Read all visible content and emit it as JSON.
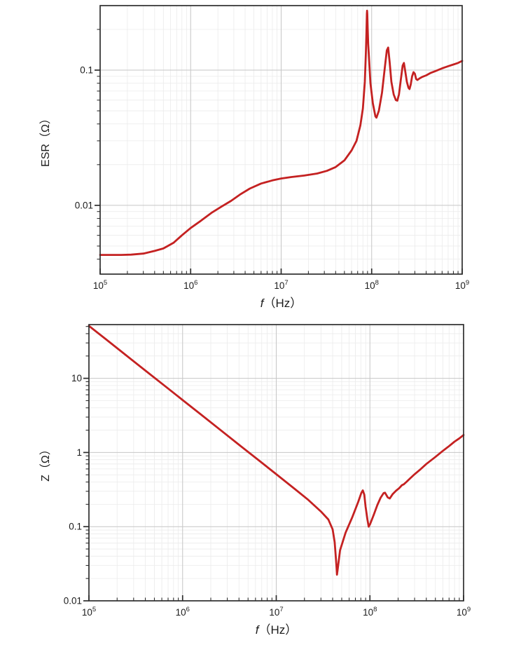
{
  "colors": {
    "curve": "#c42121",
    "frame": "#2e2e2e",
    "grid_major": "#c6c6c6",
    "grid_minor": "#ebebeb",
    "tick": "#2e2e2e",
    "text": "#1c1c1c"
  },
  "chart_data": [
    {
      "type": "line",
      "title": "",
      "xlabel": {
        "italic": "f",
        "rest": "（Hz）"
      },
      "ylabel": "ESR（Ω）",
      "xscale": "log",
      "yscale": "log",
      "xlim": [
        100000,
        1000000000
      ],
      "ylim": [
        0.0031,
        0.3
      ],
      "grid": {
        "major": true,
        "minor": true
      },
      "legend": null,
      "xticks": [
        {
          "v": 100000,
          "base": "10",
          "exp": "5"
        },
        {
          "v": 1000000,
          "base": "10",
          "exp": "6"
        },
        {
          "v": 10000000,
          "base": "10",
          "exp": "7"
        },
        {
          "v": 100000000,
          "base": "10",
          "exp": "8"
        },
        {
          "v": 1000000000,
          "base": "10",
          "exp": "9"
        }
      ],
      "yticks": [
        {
          "v": 0.01,
          "label": "0.01"
        },
        {
          "v": 0.1,
          "label": "0.1"
        }
      ],
      "series": [
        {
          "name": "ESR",
          "points": [
            [
              100000,
              0.0043
            ],
            [
              130000,
              0.0043
            ],
            [
              170000,
              0.0043
            ],
            [
              220000,
              0.00432
            ],
            [
              300000,
              0.0044
            ],
            [
              400000,
              0.0046
            ],
            [
              500000,
              0.0048
            ],
            [
              650000,
              0.0053
            ],
            [
              800000,
              0.006
            ],
            [
              1000000,
              0.0068
            ],
            [
              1300000,
              0.0077
            ],
            [
              1700000,
              0.0088
            ],
            [
              2200000,
              0.0098
            ],
            [
              2800000,
              0.0108
            ],
            [
              3500000,
              0.012
            ],
            [
              4500000,
              0.0133
            ],
            [
              6000000,
              0.0145
            ],
            [
              8000000,
              0.0153
            ],
            [
              10000000,
              0.0158
            ],
            [
              13000000,
              0.0162
            ],
            [
              18000000,
              0.0166
            ],
            [
              25000000,
              0.0172
            ],
            [
              32000000,
              0.018
            ],
            [
              40000000,
              0.0192
            ],
            [
              50000000,
              0.0215
            ],
            [
              60000000,
              0.0255
            ],
            [
              68000000,
              0.03
            ],
            [
              75000000,
              0.039
            ],
            [
              80000000,
              0.052
            ],
            [
              84000000,
              0.082
            ],
            [
              86500000,
              0.14
            ],
            [
              87500000,
              0.19
            ],
            [
              88500000,
              0.26
            ],
            [
              89000000,
              0.275
            ],
            [
              89500000,
              0.26
            ],
            [
              90500000,
              0.2
            ],
            [
              91500000,
              0.155
            ],
            [
              93000000,
              0.13
            ],
            [
              97000000,
              0.08
            ],
            [
              103000000,
              0.057
            ],
            [
              110000000,
              0.0455
            ],
            [
              113000000,
              0.0445
            ],
            [
              120000000,
              0.05
            ],
            [
              130000000,
              0.068
            ],
            [
              140000000,
              0.105
            ],
            [
              147000000,
              0.14
            ],
            [
              152000000,
              0.147
            ],
            [
              158000000,
              0.115
            ],
            [
              165000000,
              0.082
            ],
            [
              175000000,
              0.066
            ],
            [
              185000000,
              0.06
            ],
            [
              192000000,
              0.0595
            ],
            [
              200000000,
              0.066
            ],
            [
              210000000,
              0.085
            ],
            [
              220000000,
              0.108
            ],
            [
              227000000,
              0.113
            ],
            [
              235000000,
              0.098
            ],
            [
              245000000,
              0.082
            ],
            [
              255000000,
              0.074
            ],
            [
              262000000,
              0.0725
            ],
            [
              270000000,
              0.078
            ],
            [
              280000000,
              0.09
            ],
            [
              290000000,
              0.0965
            ],
            [
              300000000,
              0.094
            ],
            [
              310000000,
              0.086
            ],
            [
              320000000,
              0.0845
            ],
            [
              335000000,
              0.0865
            ],
            [
              360000000,
              0.089
            ],
            [
              400000000,
              0.0915
            ],
            [
              450000000,
              0.0955
            ],
            [
              500000000,
              0.098
            ],
            [
              600000000,
              0.103
            ],
            [
              700000000,
              0.107
            ],
            [
              800000000,
              0.11
            ],
            [
              900000000,
              0.113
            ],
            [
              1000000000,
              0.117
            ]
          ]
        }
      ]
    },
    {
      "type": "line",
      "title": "",
      "xlabel": {
        "italic": "f",
        "rest": "（Hz）"
      },
      "ylabel": "Z（Ω）",
      "xscale": "log",
      "yscale": "log",
      "xlim": [
        100000,
        1000000000
      ],
      "ylim": [
        0.01,
        53
      ],
      "grid": {
        "major": true,
        "minor": true
      },
      "legend": null,
      "xticks": [
        {
          "v": 100000,
          "base": "10",
          "exp": "5"
        },
        {
          "v": 1000000,
          "base": "10",
          "exp": "6"
        },
        {
          "v": 10000000,
          "base": "10",
          "exp": "7"
        },
        {
          "v": 100000000,
          "base": "10",
          "exp": "8"
        },
        {
          "v": 1000000000,
          "base": "10",
          "exp": "9"
        }
      ],
      "yticks": [
        {
          "v": 0.01,
          "label": "0.01"
        },
        {
          "v": 0.1,
          "label": "0.1"
        },
        {
          "v": 1,
          "label": "1"
        },
        {
          "v": 10,
          "label": "10"
        }
      ],
      "series": [
        {
          "name": "Z",
          "points": [
            [
              100000,
              51
            ],
            [
              150000,
              34
            ],
            [
              250000,
              20.4
            ],
            [
              400000,
              12.75
            ],
            [
              630000,
              8.1
            ],
            [
              1000000,
              5.1
            ],
            [
              1600000,
              3.19
            ],
            [
              2500000,
              2.04
            ],
            [
              4000000,
              1.27
            ],
            [
              6300000,
              0.81
            ],
            [
              10000000,
              0.51
            ],
            [
              16000000,
              0.318
            ],
            [
              22000000,
              0.229
            ],
            [
              30000000,
              0.16
            ],
            [
              36000000,
              0.125
            ],
            [
              40000000,
              0.092
            ],
            [
              42000000,
              0.062
            ],
            [
              43500000,
              0.035
            ],
            [
              44000000,
              0.028
            ],
            [
              44500000,
              0.0225
            ],
            [
              45200000,
              0.026
            ],
            [
              46000000,
              0.031
            ],
            [
              48000000,
              0.048
            ],
            [
              55000000,
              0.083
            ],
            [
              65000000,
              0.135
            ],
            [
              75000000,
              0.215
            ],
            [
              81000000,
              0.285
            ],
            [
              84000000,
              0.308
            ],
            [
              87000000,
              0.27
            ],
            [
              90000000,
              0.185
            ],
            [
              94000000,
              0.125
            ],
            [
              97000000,
              0.1
            ],
            [
              100000000,
              0.107
            ],
            [
              110000000,
              0.145
            ],
            [
              120000000,
              0.195
            ],
            [
              130000000,
              0.245
            ],
            [
              140000000,
              0.283
            ],
            [
              145000000,
              0.287
            ],
            [
              155000000,
              0.248
            ],
            [
              163000000,
              0.24
            ],
            [
              175000000,
              0.275
            ],
            [
              190000000,
              0.305
            ],
            [
              205000000,
              0.33
            ],
            [
              220000000,
              0.363
            ],
            [
              230000000,
              0.372
            ],
            [
              245000000,
              0.4
            ],
            [
              270000000,
              0.45
            ],
            [
              300000000,
              0.51
            ],
            [
              350000000,
              0.6
            ],
            [
              400000000,
              0.7
            ],
            [
              500000000,
              0.87
            ],
            [
              600000000,
              1.05
            ],
            [
              700000000,
              1.22
            ],
            [
              800000000,
              1.4
            ],
            [
              900000000,
              1.55
            ],
            [
              1000000000,
              1.72
            ]
          ]
        }
      ]
    }
  ]
}
